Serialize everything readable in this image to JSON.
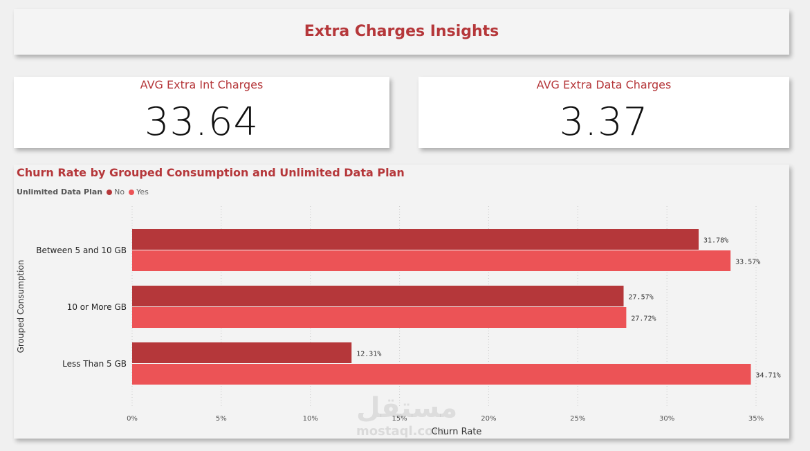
{
  "header": {
    "title": "Extra Charges Insights"
  },
  "kpis": [
    {
      "label": "AVG Extra Int Charges",
      "value": "33.64"
    },
    {
      "label": "AVG Extra Data Charges",
      "value": "3.37"
    }
  ],
  "watermark": {
    "arabic": "مستقل",
    "latin": "mostaql.com"
  },
  "colors": {
    "accent": "#b5373a",
    "no": "#b5373a",
    "yes": "#ec5356"
  },
  "chart_data": {
    "type": "bar",
    "orientation": "horizontal",
    "title": "Churn Rate by Grouped Consumption and Unlimited Data Plan",
    "legend_title": "Unlimited Data Plan",
    "legend_position": "top-left",
    "categories": [
      "Between 5 and 10 GB",
      "10 or More GB",
      "Less Than 5 GB"
    ],
    "series": [
      {
        "name": "No",
        "values": [
          31.78,
          27.57,
          12.31
        ],
        "labels": [
          "31.78%",
          "27.57%",
          "12.31%"
        ]
      },
      {
        "name": "Yes",
        "values": [
          33.57,
          27.72,
          34.71
        ],
        "labels": [
          "33.57%",
          "27.72%",
          "34.71%"
        ]
      }
    ],
    "xlabel": "Churn Rate",
    "ylabel": "Grouped Consumption",
    "xlim": [
      0,
      35
    ],
    "xticks": [
      0,
      5,
      10,
      15,
      20,
      25,
      30,
      35
    ],
    "xtick_labels": [
      "0%",
      "5%",
      "10%",
      "15%",
      "20%",
      "25%",
      "30%",
      "35%"
    ],
    "grid": true
  }
}
